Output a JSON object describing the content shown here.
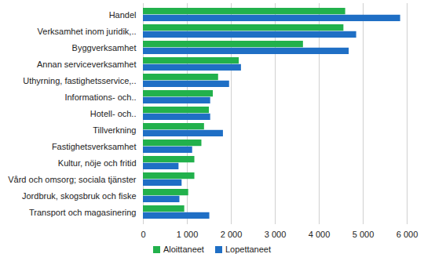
{
  "chart_data": {
    "type": "bar",
    "orientation": "horizontal",
    "grid": true,
    "legend": "bottom",
    "categories": [
      "Handel",
      "Verksamhet inom juridik,..",
      "Byggverksamhet",
      "Annan serviceverksamhet",
      "Uthyrning, fastighetsservice,..",
      "Informations- och..",
      "Hotell- och..",
      "Tillverkning",
      "Fastighetsverksamhet",
      "Kultur, nöje och fritid",
      "Vård och omsorg; sociala tjänster",
      "Jordbruk, skogsbruk och fiske",
      "Transport och magasinering"
    ],
    "series": [
      {
        "name": "Aloittaneet",
        "color": "#22b14c",
        "values": [
          4600,
          4560,
          3640,
          2180,
          1710,
          1590,
          1500,
          1390,
          1330,
          1170,
          1170,
          1030,
          940
        ]
      },
      {
        "name": "Lopettaneet",
        "color": "#1f6fc5",
        "values": [
          5850,
          4850,
          4680,
          2230,
          1960,
          1530,
          1530,
          1820,
          1120,
          810,
          880,
          830,
          1510
        ]
      }
    ],
    "xlim": [
      0,
      6000
    ],
    "xticks": [
      0,
      {
        "value": 1000,
        "label": "1 000"
      },
      {
        "value": 2000,
        "label": "2 000"
      },
      {
        "value": 3000,
        "label": "3 000"
      },
      {
        "value": 4000,
        "label": "4 000"
      },
      {
        "value": 5000,
        "label": "5 000"
      },
      {
        "value": 6000,
        "label": "6 000"
      }
    ]
  }
}
